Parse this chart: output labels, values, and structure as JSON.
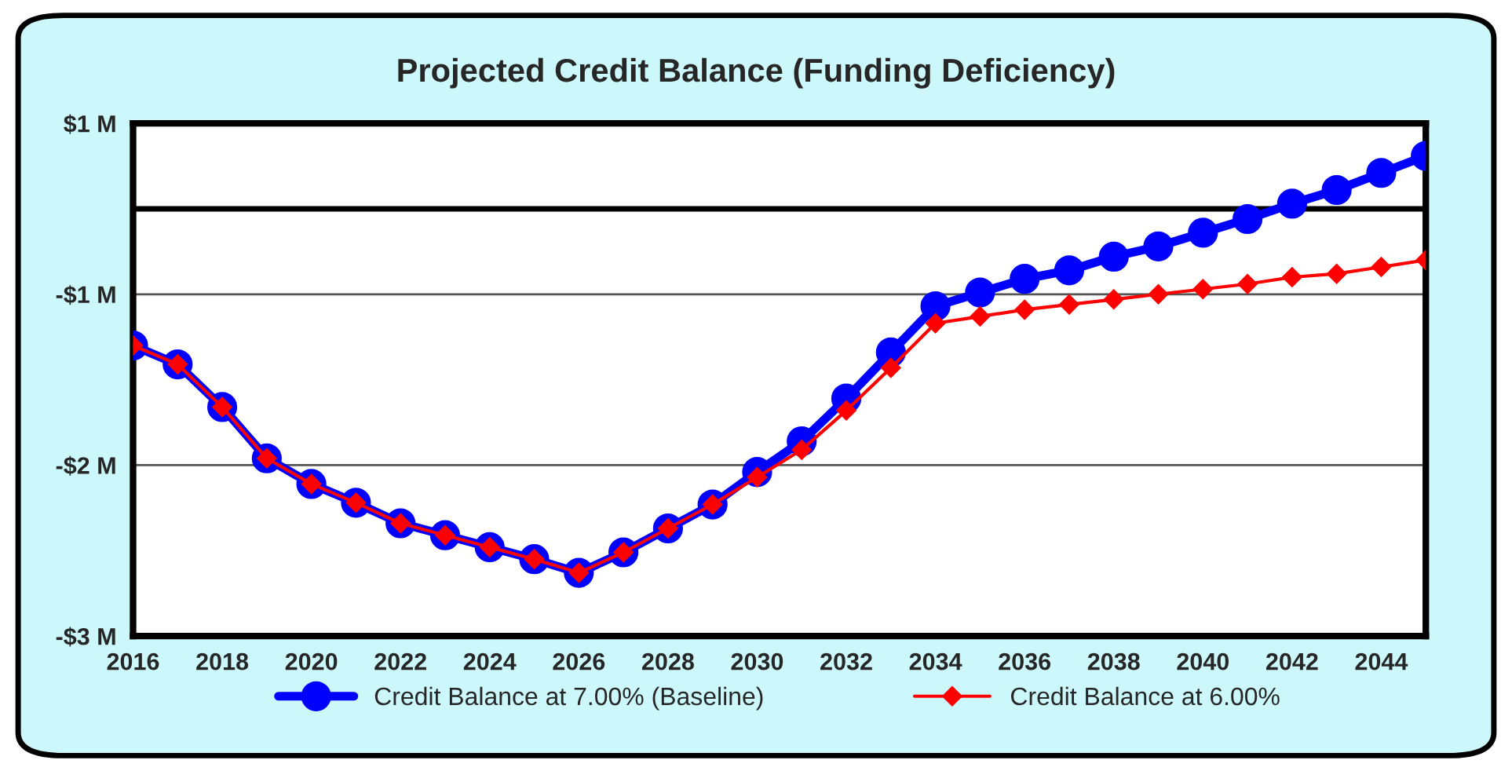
{
  "chart_data": {
    "type": "line",
    "title": "Projected Credit Balance (Funding Deficiency)",
    "x": [
      2016,
      2017,
      2018,
      2019,
      2020,
      2021,
      2022,
      2023,
      2024,
      2025,
      2026,
      2027,
      2028,
      2029,
      2030,
      2031,
      2032,
      2033,
      2034,
      2035,
      2036,
      2037,
      2038,
      2039,
      2040,
      2041,
      2042,
      2043,
      2044,
      2045
    ],
    "series": [
      {
        "name": "Credit Balance at 7.00% (Baseline)",
        "color": "#0000ff",
        "marker": "circle",
        "values": [
          -0.8,
          -0.91,
          -1.16,
          -1.46,
          -1.61,
          -1.72,
          -1.84,
          -1.91,
          -1.98,
          -2.05,
          -2.13,
          -2.01,
          -1.87,
          -1.73,
          -1.54,
          -1.36,
          -1.11,
          -0.84,
          -0.57,
          -0.49,
          -0.41,
          -0.36,
          -0.28,
          -0.22,
          -0.14,
          -0.06,
          0.03,
          0.11,
          0.21,
          0.31
        ]
      },
      {
        "name": "Credit Balance at 6.00%",
        "color": "#ff0000",
        "marker": "diamond",
        "values": [
          -0.8,
          -0.91,
          -1.16,
          -1.46,
          -1.61,
          -1.72,
          -1.84,
          -1.91,
          -1.98,
          -2.05,
          -2.13,
          -2.01,
          -1.87,
          -1.73,
          -1.57,
          -1.41,
          -1.18,
          -0.93,
          -0.67,
          -0.63,
          -0.59,
          -0.56,
          -0.53,
          -0.5,
          -0.47,
          -0.44,
          -0.4,
          -0.38,
          -0.34,
          -0.3
        ]
      }
    ],
    "xlim": [
      2016,
      2045
    ],
    "xticks": [
      2016,
      2018,
      2020,
      2022,
      2024,
      2026,
      2028,
      2030,
      2032,
      2034,
      2036,
      2038,
      2040,
      2042,
      2044
    ],
    "ylim": [
      -2.5,
      0.5
    ],
    "yticks": [
      {
        "value": 0.5,
        "label": "$1 M"
      },
      {
        "value": -0.5,
        "label": "-$1 M"
      },
      {
        "value": -1.5,
        "label": "-$2 M"
      },
      {
        "value": -2.5,
        "label": "-$3 M"
      }
    ],
    "ref_lines": [
      {
        "axis": "y",
        "value": 0,
        "color": "#000000"
      }
    ],
    "grid": "y",
    "legend": "bottom"
  }
}
